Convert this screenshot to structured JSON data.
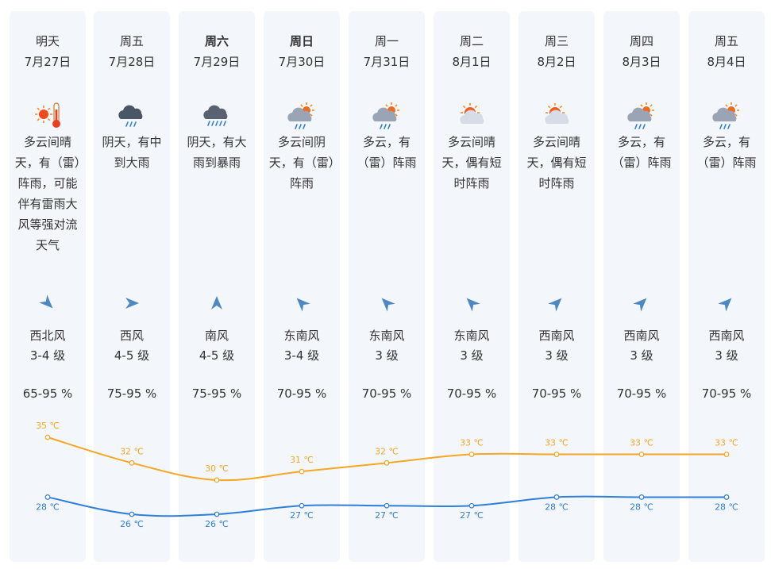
{
  "colors": {
    "high": "#f5a623",
    "low": "#2f7fd8",
    "card": "#f3f6fb"
  },
  "days": [
    {
      "weekday": "明天",
      "date": "7月27日",
      "bold": false,
      "icon": "sunny-hot-icon",
      "desc": "多云间晴天，有（雷）阵雨，可能伴有雷雨大风等强对流天气",
      "wind_dir": "西北风",
      "wind_level": "3-4 级",
      "wind_to": "southeast",
      "humidity": "65-95 %"
    },
    {
      "weekday": "周五",
      "date": "7月28日",
      "bold": false,
      "icon": "moderate-rain-icon",
      "desc": "阴天，有中到大雨",
      "wind_dir": "西风",
      "wind_level": "4-5 级",
      "wind_to": "east",
      "humidity": "75-95 %"
    },
    {
      "weekday": "周六",
      "date": "7月29日",
      "bold": true,
      "icon": "heavy-rain-icon",
      "desc": "阴天，有大雨到暴雨",
      "wind_dir": "南风",
      "wind_level": "4-5 级",
      "wind_to": "north",
      "humidity": "75-95 %"
    },
    {
      "weekday": "周日",
      "date": "7月30日",
      "bold": true,
      "icon": "cloudy-sun-rain-icon",
      "desc": "多云间阴天，有（雷）阵雨",
      "wind_dir": "东南风",
      "wind_level": "3-4 级",
      "wind_to": "northwest",
      "humidity": "70-95 %"
    },
    {
      "weekday": "周一",
      "date": "7月31日",
      "bold": false,
      "icon": "cloudy-sun-rain-icon",
      "desc": "多云，有（雷）阵雨",
      "wind_dir": "东南风",
      "wind_level": "3 级",
      "wind_to": "northwest",
      "humidity": "70-95 %"
    },
    {
      "weekday": "周二",
      "date": "8月1日",
      "bold": false,
      "icon": "sun-cloud-shower-icon",
      "desc": "多云间晴天，偶有短时阵雨",
      "wind_dir": "东南风",
      "wind_level": "3 级",
      "wind_to": "northwest",
      "humidity": "70-95 %"
    },
    {
      "weekday": "周三",
      "date": "8月2日",
      "bold": false,
      "icon": "sun-cloud-shower-icon",
      "desc": "多云间晴天，偶有短时阵雨",
      "wind_dir": "西南风",
      "wind_level": "3 级",
      "wind_to": "northeast",
      "humidity": "70-95 %"
    },
    {
      "weekday": "周四",
      "date": "8月3日",
      "bold": false,
      "icon": "cloudy-sun-rain-icon",
      "desc": "多云，有（雷）阵雨",
      "wind_dir": "西南风",
      "wind_level": "3 级",
      "wind_to": "northeast",
      "humidity": "70-95 %"
    },
    {
      "weekday": "周五",
      "date": "8月4日",
      "bold": false,
      "icon": "cloudy-sun-rain-icon",
      "desc": "多云，有（雷）阵雨",
      "wind_dir": "西南风",
      "wind_level": "3 级",
      "wind_to": "northeast",
      "humidity": "70-95 %"
    }
  ],
  "chart_data": {
    "type": "line",
    "categories": [
      "7月27日",
      "7月28日",
      "7月29日",
      "7月30日",
      "7月31日",
      "8月1日",
      "8月2日",
      "8月3日",
      "8月4日"
    ],
    "unit": "℃",
    "series": [
      {
        "key": "high",
        "values": [
          35,
          32,
          30,
          31,
          32,
          33,
          33,
          33,
          33
        ]
      },
      {
        "key": "low",
        "values": [
          28,
          26,
          26,
          27,
          27,
          27,
          28,
          28,
          28
        ]
      }
    ],
    "ylim": [
      26,
      35
    ],
    "grid": false,
    "legend": "none"
  }
}
